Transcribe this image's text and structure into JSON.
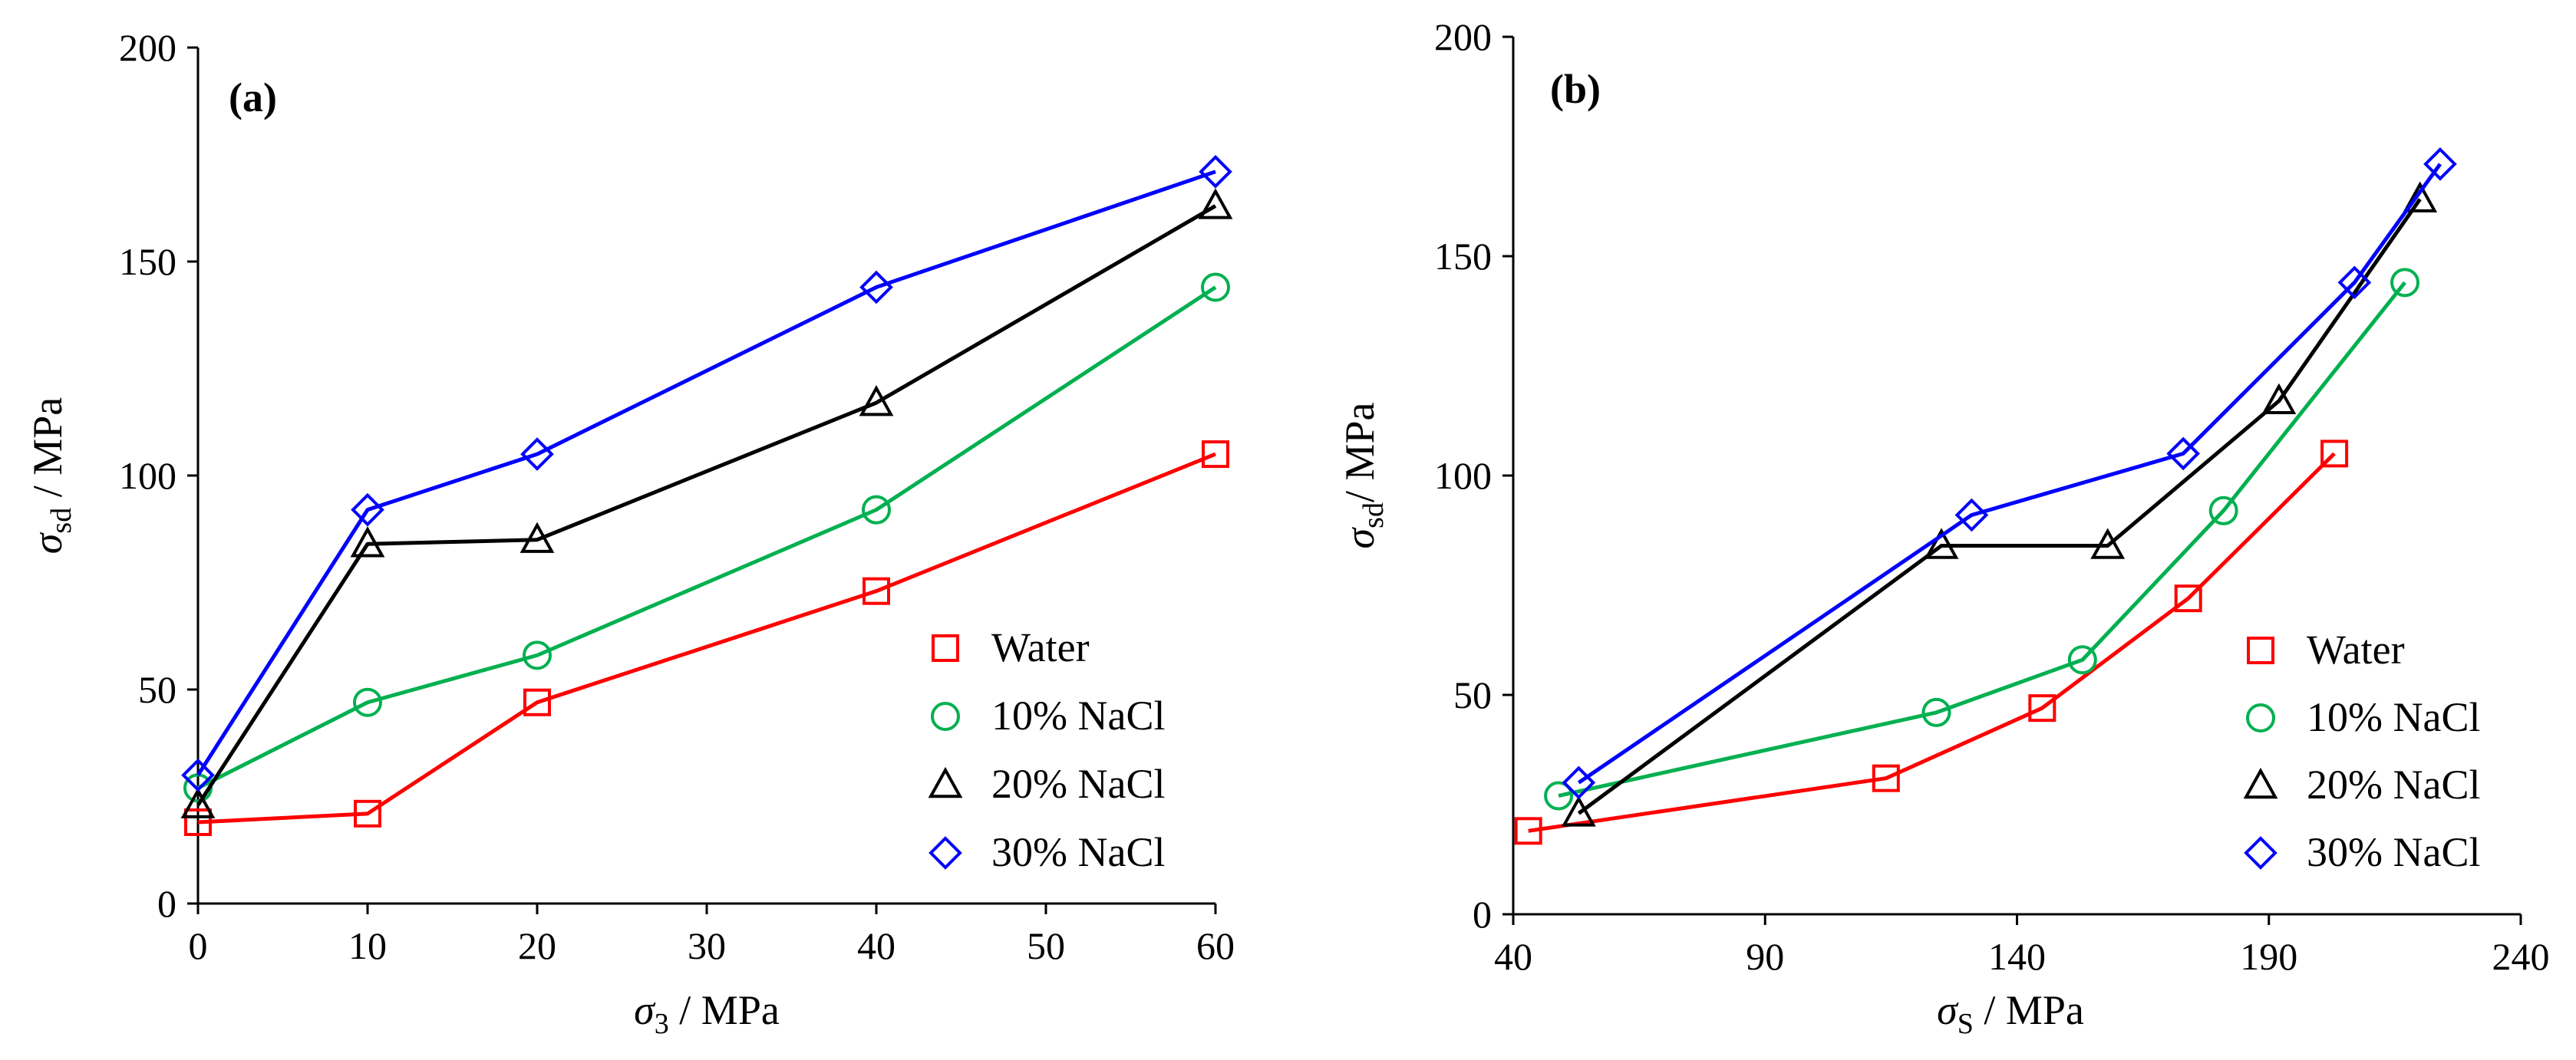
{
  "chart_data": [
    {
      "type": "line",
      "panel_label": "(a)",
      "xlabel": {
        "symbol": "σ",
        "sub": "3",
        "unit": " / MPa"
      },
      "ylabel": {
        "symbol": "σ",
        "sub": "sd",
        "unit": " / MPa"
      },
      "xlim": [
        0,
        60
      ],
      "ylim": [
        0,
        200
      ],
      "xticks": [
        0,
        10,
        20,
        30,
        40,
        50,
        60
      ],
      "yticks": [
        0,
        50,
        100,
        150,
        200
      ],
      "grid": false,
      "legend_position": "bottom-right",
      "series": [
        {
          "name": "Water",
          "marker": "square",
          "color": "#ff0000",
          "marker_color": "#ff0000",
          "x": [
            0,
            10,
            20,
            40,
            60
          ],
          "y": [
            19,
            21,
            47,
            73,
            105
          ]
        },
        {
          "name": "10% NaCl",
          "marker": "circle",
          "color": "#00b050",
          "marker_color": "#00b050",
          "x": [
            0,
            10,
            20,
            40,
            60
          ],
          "y": [
            27,
            47,
            58,
            92,
            144
          ]
        },
        {
          "name": "20% NaCl",
          "marker": "triangle",
          "color": "#000000",
          "marker_color": "#000000",
          "x": [
            0,
            10,
            20,
            40,
            60
          ],
          "y": [
            23,
            84,
            85,
            117,
            163
          ]
        },
        {
          "name": "30% NaCl",
          "marker": "diamond",
          "color": "#0000ff",
          "marker_color": "#0000ff",
          "x": [
            0,
            10,
            20,
            40,
            60
          ],
          "y": [
            30,
            92,
            105,
            144,
            171
          ]
        }
      ]
    },
    {
      "type": "line",
      "panel_label": "(b)",
      "xlabel": {
        "symbol": "σ",
        "sub": "S",
        "unit": " / MPa"
      },
      "ylabel": {
        "symbol": "σ",
        "sub": "sd",
        "unit": "/ MPa"
      },
      "xlim": [
        40,
        240
      ],
      "ylim": [
        0,
        200
      ],
      "xticks": [
        40,
        90,
        140,
        190,
        240
      ],
      "yticks": [
        0,
        50,
        100,
        150,
        200
      ],
      "grid": false,
      "legend_position": "bottom-right",
      "series": [
        {
          "name": "Water",
          "marker": "square",
          "color": "#ff0000",
          "marker_color": "#ff0000",
          "x": [
            43,
            114,
            145,
            174,
            203
          ],
          "y": [
            19,
            31,
            47,
            72,
            105
          ]
        },
        {
          "name": "10% NaCl",
          "marker": "circle",
          "color": "#00b050",
          "marker_color": "#00b050",
          "x": [
            49,
            124,
            153,
            181,
            217
          ],
          "y": [
            27,
            46,
            58,
            92,
            144
          ]
        },
        {
          "name": "20% NaCl",
          "marker": "triangle",
          "color": "#000000",
          "marker_color": "#000000",
          "x": [
            53,
            125,
            158,
            192,
            220
          ],
          "y": [
            23,
            84,
            84,
            117,
            163
          ]
        },
        {
          "name": "30% NaCl",
          "marker": "diamond",
          "color": "#0000ff",
          "marker_color": "#0000ff",
          "x": [
            53,
            131,
            173,
            207,
            224
          ],
          "y": [
            30,
            91,
            105,
            144,
            171
          ]
        }
      ]
    }
  ]
}
